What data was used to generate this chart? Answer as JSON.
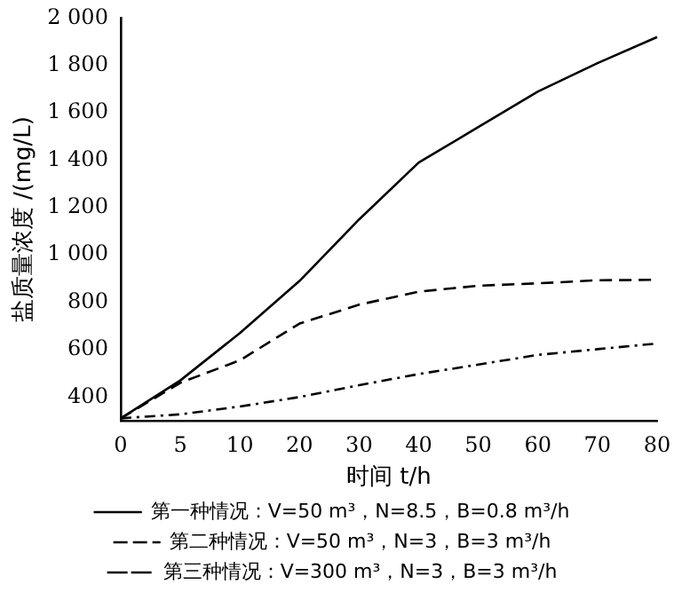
{
  "chart_data": {
    "type": "line",
    "xlabel": "时间 t/h",
    "ylabel": "盐质量浓度 /(mg/L)",
    "categories": [
      "0",
      "5",
      "10",
      "20",
      "30",
      "40",
      "50",
      "60",
      "70",
      "80"
    ],
    "series": [
      {
        "name": "第一种情况：V=50 m³，N=8.5，B=0.8 m³/h",
        "color": "#000000",
        "line_style": "solid",
        "values": [
          310,
          470,
          670,
          890,
          1150,
          1390,
          1540,
          1690,
          1810,
          1920
        ]
      },
      {
        "name": "第二种情况：V=50 m³，N=3，B=3 m³/h",
        "color": "#000000",
        "line_style": "dashed",
        "values": [
          310,
          460,
          555,
          710,
          790,
          845,
          870,
          880,
          893,
          895
        ]
      },
      {
        "name": "第三种情况：V=300 m³，N=3，B=3 m³/h",
        "color": "#000000",
        "line_style": "dotted",
        "values": [
          310,
          327,
          360,
          400,
          450,
          497,
          537,
          578,
          602,
          626
        ]
      }
    ],
    "ylim": [
      300,
      2000
    ],
    "yticks": [
      {
        "value": 400,
        "label": "400"
      },
      {
        "value": 600,
        "label": "600"
      },
      {
        "value": 800,
        "label": "800"
      },
      {
        "value": 1000,
        "label": "1 000"
      },
      {
        "value": 1200,
        "label": "1 200"
      },
      {
        "value": 1400,
        "label": "1 400"
      },
      {
        "value": 1600,
        "label": "1 600"
      },
      {
        "value": 1800,
        "label": "1 800"
      },
      {
        "value": 2000,
        "label": "2 000"
      }
    ],
    "grid": false,
    "legend": "bottom",
    "marker": "none"
  }
}
